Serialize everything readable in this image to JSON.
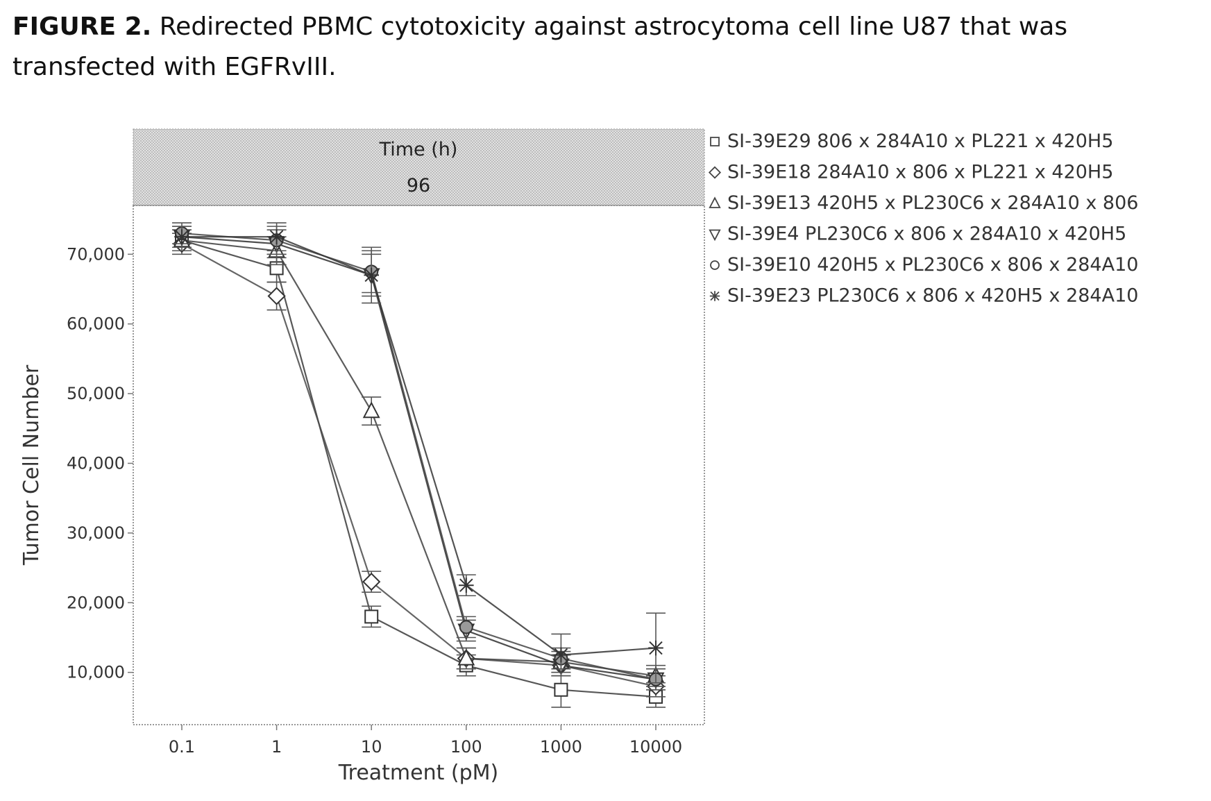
{
  "caption": {
    "label": "FIGURE 2.",
    "text": " Redirected PBMC cytotoxicity against astrocytoma cell line U87 that was transfected with EGFRvIII."
  },
  "chart_data": {
    "type": "line",
    "panel_title": "Time (h)",
    "panel_value": "96",
    "xlabel": "Treatment (pM)",
    "ylabel": "Tumor Cell Number",
    "x_scale": "log",
    "x": [
      0.1,
      1,
      10,
      100,
      1000,
      10000
    ],
    "x_tick_labels": [
      "0.1",
      "1",
      "10",
      "100",
      "1000",
      "10000"
    ],
    "ylim": [
      2500,
      77000
    ],
    "y_ticks": [
      10000,
      20000,
      30000,
      40000,
      50000,
      60000,
      70000
    ],
    "y_tick_labels": [
      "10,000",
      "20,000",
      "30,000",
      "40,000",
      "50,000",
      "60,000",
      "70,000"
    ],
    "legend_position": "right",
    "series": [
      {
        "name": "SI-39E29 806 x 284A10 x PL221 x 420H5",
        "marker": "square",
        "values": [
          72000,
          68000,
          18000,
          11000,
          7500,
          6500
        ],
        "err": [
          1500,
          2000,
          1500,
          1500,
          2500,
          1500
        ]
      },
      {
        "name": "SI-39E18 284A10 x 806 x PL221 x 420H5",
        "marker": "diamond",
        "values": [
          71500,
          64000,
          23000,
          12000,
          11000,
          8000
        ],
        "err": [
          1500,
          2000,
          1500,
          1500,
          1500,
          1500
        ]
      },
      {
        "name": "SI-39E13 420H5 x PL230C6 x 284A10 x 806",
        "marker": "triangle-up",
        "values": [
          72000,
          70500,
          47500,
          12000,
          11500,
          9500
        ],
        "err": [
          1500,
          2000,
          2000,
          1500,
          1500,
          1500
        ]
      },
      {
        "name": "SI-39E4 PL230C6 x 806 x 284A10 x 420H5",
        "marker": "triangle-down",
        "values": [
          72500,
          71500,
          67000,
          16000,
          11000,
          9000
        ],
        "err": [
          1500,
          2000,
          3000,
          1500,
          1500,
          1500
        ]
      },
      {
        "name": "SI-39E10 420H5 x PL230C6 x 806 x 284A10",
        "marker": "circle",
        "values": [
          73000,
          72000,
          67500,
          16500,
          12000,
          9000
        ],
        "err": [
          1500,
          2000,
          3000,
          1500,
          1500,
          1500
        ]
      },
      {
        "name": "SI-39E23 PL230C6 x 806 x 420H5 x 284A10",
        "marker": "star",
        "values": [
          72500,
          72500,
          67000,
          22500,
          12500,
          13500
        ],
        "err": [
          1500,
          2000,
          4000,
          1500,
          3000,
          5000
        ]
      }
    ]
  }
}
